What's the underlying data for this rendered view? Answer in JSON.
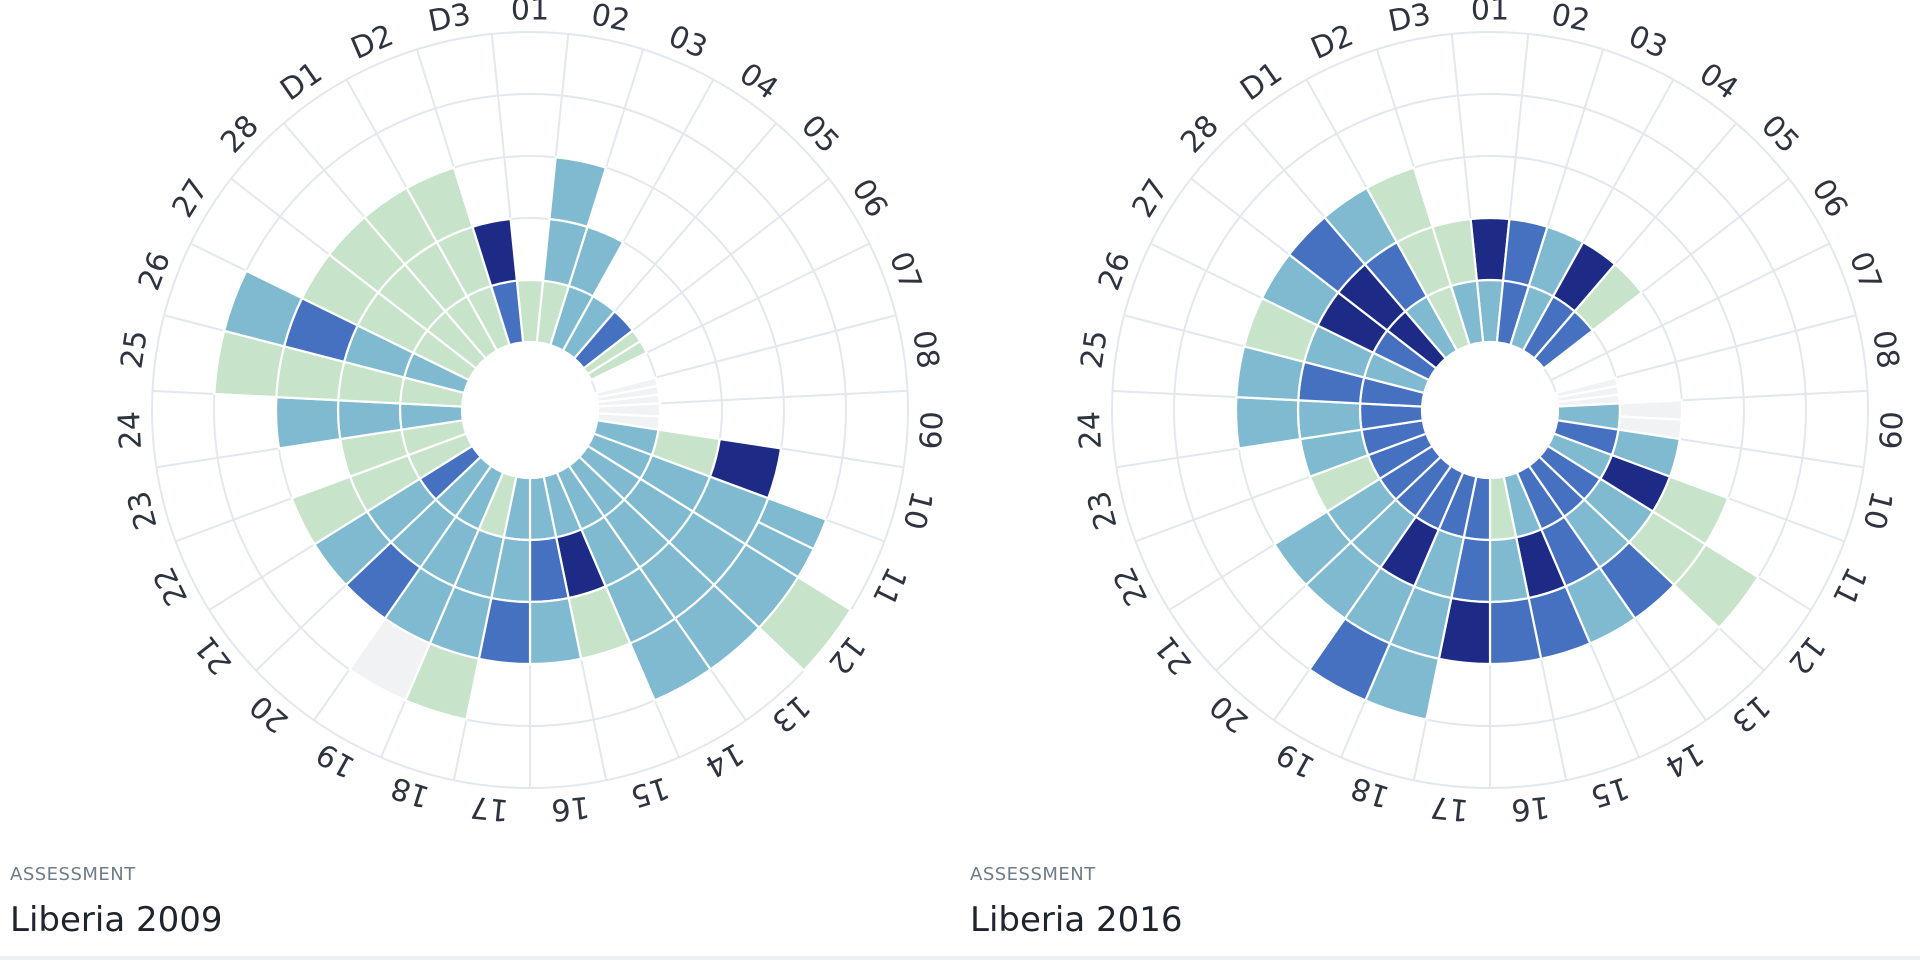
{
  "colors": {
    "empty": "#ffffff",
    "grey": "#f1f2f4",
    "light_green": "#c7e3c9",
    "light_blue": "#7fbad0",
    "mid_blue": "#4670c0",
    "dark_navy": "#1e2b86",
    "grid": "#e3e8ee"
  },
  "level_legend": [
    "empty",
    "grey",
    "light_green",
    "light_blue",
    "mid_blue",
    "dark_navy"
  ],
  "charts": [
    {
      "caption_label": "ASSESSMENT",
      "caption_title": "Liberia 2009"
    },
    {
      "caption_label": "ASSESSMENT",
      "caption_title": "Liberia 2016"
    }
  ],
  "chart_data": [
    {
      "type": "polar-bar",
      "title": "",
      "angular_labels": [
        "01",
        "02",
        "03",
        "04",
        "05",
        "06",
        "07",
        "08",
        "09",
        "10",
        "11",
        "12",
        "13",
        "14",
        "15",
        "16",
        "17",
        "18",
        "19",
        "20",
        "21",
        "22",
        "23",
        "24",
        "25",
        "26",
        "27",
        "28",
        "D1",
        "D2",
        "D3"
      ],
      "radial_max": 5,
      "grid_rings": 5,
      "grid": true,
      "sectors": [
        [
          [
            "light_green"
          ]
        ],
        [
          [
            "light_green"
          ],
          [
            "light_blue"
          ],
          [
            "light_blue"
          ]
        ],
        [
          [
            "light_blue"
          ],
          [
            "light_blue"
          ]
        ],
        [
          [
            "light_blue"
          ]
        ],
        [
          [
            "mid_blue"
          ]
        ],
        [
          [
            "light_green",
            "light_green"
          ]
        ],
        [],
        [
          [
            "grey",
            "grey",
            "grey"
          ]
        ],
        [
          [
            "grey",
            "grey"
          ]
        ],
        [
          [
            "light_blue"
          ],
          [
            "light_green"
          ],
          [
            "dark_navy"
          ]
        ],
        [
          [
            "light_blue"
          ],
          [
            "light_blue"
          ],
          [
            "light_blue"
          ],
          [
            "light_blue",
            "light_blue"
          ]
        ],
        [
          [
            "light_blue"
          ],
          [
            "light_blue"
          ],
          [
            "light_blue"
          ],
          [
            "light_blue"
          ],
          [
            "light_green"
          ]
        ],
        [
          [
            "light_blue"
          ],
          [
            "light_blue"
          ],
          [
            "light_blue"
          ],
          [
            "light_blue"
          ]
        ],
        [
          [
            "light_blue"
          ],
          [
            "light_blue"
          ],
          [
            "light_blue"
          ],
          [
            "light_blue"
          ]
        ],
        [
          [
            "light_blue"
          ],
          [
            "dark_navy"
          ],
          [
            "light_green"
          ]
        ],
        [
          [
            "light_blue"
          ],
          [
            "mid_blue"
          ],
          [
            "light_blue"
          ]
        ],
        [
          [
            "light_blue"
          ],
          [
            "light_blue"
          ],
          [
            "mid_blue"
          ]
        ],
        [
          [
            "light_green"
          ],
          [
            "light_blue"
          ],
          [
            "light_blue"
          ],
          [
            "light_green"
          ]
        ],
        [
          [
            "light_blue"
          ],
          [
            "light_blue"
          ],
          [
            "light_blue"
          ],
          [
            "grey"
          ]
        ],
        [
          [
            "light_blue"
          ],
          [
            "light_blue"
          ],
          [
            "mid_blue"
          ]
        ],
        [
          [
            "mid_blue"
          ],
          [
            "light_blue"
          ],
          [
            "light_blue"
          ]
        ],
        [
          [
            "light_green"
          ],
          [
            "light_green"
          ],
          [
            "light_green"
          ]
        ],
        [
          [
            "light_green"
          ],
          [
            "light_green"
          ]
        ],
        [
          [
            "light_blue"
          ],
          [
            "light_blue"
          ],
          [
            "light_blue"
          ]
        ],
        [
          [
            "light_green"
          ],
          [
            "light_green"
          ],
          [
            "light_green"
          ],
          [
            "light_green"
          ]
        ],
        [
          [
            "light_blue"
          ],
          [
            "light_blue"
          ],
          [
            "mid_blue"
          ],
          [
            "light_blue"
          ]
        ],
        [
          [
            "light_green"
          ],
          [
            "light_green"
          ],
          [
            "light_green"
          ]
        ],
        [
          [
            "light_green"
          ],
          [
            "light_green"
          ],
          [
            "light_green"
          ]
        ],
        [
          [
            "light_green"
          ],
          [
            "light_green"
          ],
          [
            "light_green"
          ]
        ],
        [
          [
            "light_green"
          ],
          [
            "light_green"
          ],
          [
            "light_green"
          ]
        ],
        [
          [
            "mid_blue"
          ],
          [
            "dark_navy"
          ]
        ]
      ]
    },
    {
      "type": "polar-bar",
      "title": "",
      "angular_labels": [
        "01",
        "02",
        "03",
        "04",
        "05",
        "06",
        "07",
        "08",
        "09",
        "10",
        "11",
        "12",
        "13",
        "14",
        "15",
        "16",
        "17",
        "18",
        "19",
        "20",
        "21",
        "22",
        "23",
        "24",
        "25",
        "26",
        "27",
        "28",
        "D1",
        "D2",
        "D3"
      ],
      "radial_max": 5,
      "grid_rings": 5,
      "grid": true,
      "sectors": [
        [
          [
            "light_blue"
          ],
          [
            "dark_navy"
          ]
        ],
        [
          [
            "mid_blue"
          ],
          [
            "mid_blue"
          ]
        ],
        [
          [
            "light_blue"
          ],
          [
            "light_blue"
          ]
        ],
        [
          [
            "mid_blue"
          ],
          [
            "dark_navy"
          ]
        ],
        [
          [
            "mid_blue"
          ],
          [
            "light_green"
          ]
        ],
        [],
        [],
        [
          [
            "grey",
            "grey",
            "grey"
          ]
        ],
        [
          [
            "light_blue"
          ],
          [
            "grey",
            "grey"
          ]
        ],
        [
          [
            "mid_blue"
          ],
          [
            "light_blue"
          ]
        ],
        [
          [
            "light_blue"
          ],
          [
            "dark_navy"
          ],
          [
            "light_green"
          ]
        ],
        [
          [
            "mid_blue"
          ],
          [
            "light_blue"
          ],
          [
            "light_green"
          ],
          [
            "light_green"
          ]
        ],
        [
          [
            "mid_blue"
          ],
          [
            "light_blue"
          ],
          [
            "mid_blue"
          ]
        ],
        [
          [
            "mid_blue"
          ],
          [
            "mid_blue"
          ],
          [
            "light_blue"
          ]
        ],
        [
          [
            "light_blue"
          ],
          [
            "dark_navy"
          ],
          [
            "mid_blue"
          ]
        ],
        [
          [
            "light_green"
          ],
          [
            "light_blue"
          ],
          [
            "mid_blue"
          ]
        ],
        [
          [
            "mid_blue"
          ],
          [
            "mid_blue"
          ],
          [
            "dark_navy"
          ]
        ],
        [
          [
            "mid_blue"
          ],
          [
            "light_blue"
          ],
          [
            "light_blue"
          ],
          [
            "light_blue"
          ]
        ],
        [
          [
            "mid_blue"
          ],
          [
            "dark_navy"
          ],
          [
            "light_blue"
          ],
          [
            "mid_blue"
          ]
        ],
        [
          [
            "mid_blue"
          ],
          [
            "light_blue"
          ],
          [
            "light_blue"
          ]
        ],
        [
          [
            "mid_blue"
          ],
          [
            "light_blue"
          ],
          [
            "light_blue"
          ]
        ],
        [
          [
            "mid_blue"
          ],
          [
            "light_green"
          ]
        ],
        [
          [
            "mid_blue"
          ],
          [
            "light_blue"
          ]
        ],
        [
          [
            "mid_blue"
          ],
          [
            "light_blue"
          ],
          [
            "light_blue"
          ]
        ],
        [
          [
            "mid_blue"
          ],
          [
            "mid_blue"
          ],
          [
            "light_blue"
          ]
        ],
        [
          [
            "light_blue"
          ],
          [
            "light_blue"
          ],
          [
            "light_green"
          ]
        ],
        [
          [
            "mid_blue"
          ],
          [
            "dark_navy"
          ],
          [
            "light_blue"
          ]
        ],
        [
          [
            "dark_navy"
          ],
          [
            "dark_navy"
          ],
          [
            "mid_blue"
          ]
        ],
        [
          [
            "light_blue"
          ],
          [
            "mid_blue"
          ],
          [
            "light_blue"
          ]
        ],
        [
          [
            "light_green"
          ],
          [
            "light_green"
          ],
          [
            "light_green"
          ]
        ],
        [
          [
            "light_blue"
          ],
          [
            "light_green"
          ]
        ]
      ]
    }
  ]
}
